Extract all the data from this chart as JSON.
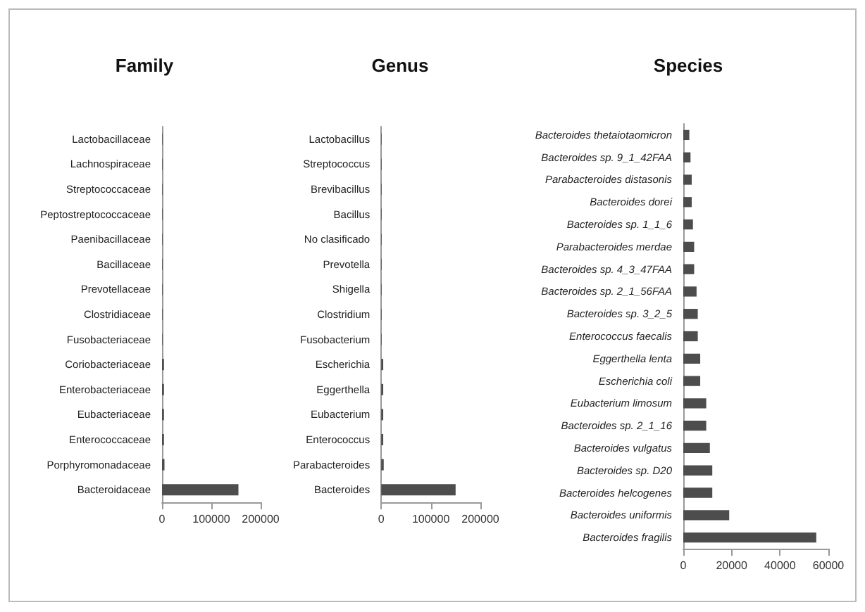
{
  "chart_data": [
    {
      "type": "bar",
      "orientation": "horizontal",
      "title": "Family",
      "categories": [
        "Lactobacillaceae",
        "Lachnospiraceae",
        "Streptococcaceae",
        "Peptostreptococcaceae",
        "Paenibacillaceae",
        "Bacillaceae",
        "Prevotellaceae",
        "Clostridiaceae",
        "Fusobacteriaceae",
        "Coriobacteriaceae",
        "Enterobacteriaceae",
        "Eubacteriaceae",
        "Enterococcaceae",
        "Porphyromonadaceae",
        "Bacteroidaceae"
      ],
      "values": [
        1000,
        1000,
        1000,
        1000,
        1000,
        1000,
        1000,
        1000,
        1000,
        4000,
        4000,
        4000,
        4000,
        5000,
        155000
      ],
      "color": "#4d4d4d",
      "xlim": [
        0,
        200000
      ],
      "xticks": [
        0,
        100000,
        200000
      ],
      "grid": false
    },
    {
      "type": "bar",
      "orientation": "horizontal",
      "title": "Genus",
      "categories": [
        "Lactobacillus",
        "Streptococcus",
        "Brevibacillus",
        "Bacillus",
        "No clasificado",
        "Prevotella",
        "Shigella",
        "Clostridium",
        "Fusobacterium",
        "Escherichia",
        "Eggerthella",
        "Eubacterium",
        "Enterococcus",
        "Parabacteroides",
        "Bacteroides"
      ],
      "values": [
        1000,
        1000,
        1000,
        1000,
        1000,
        1000,
        1000,
        1000,
        1000,
        4000,
        4000,
        4000,
        4000,
        5000,
        150000
      ],
      "color": "#4d4d4d",
      "xlim": [
        0,
        200000
      ],
      "xticks": [
        0,
        100000,
        200000
      ],
      "grid": false
    },
    {
      "type": "bar",
      "orientation": "horizontal",
      "title": "Species",
      "categories": [
        "Bacteroides thetaiotaomicron",
        "Bacteroides sp. 9_1_42FAA",
        "Parabacteroides distasonis",
        "Bacteroides dorei",
        "Bacteroides sp. 1_1_6",
        "Parabacteroides merdae",
        "Bacteroides sp. 4_3_47FAA",
        "Bacteroides sp. 2_1_56FAA",
        "Bacteroides sp. 3_2_5",
        "Enterococcus faecalis",
        "Eggerthella lenta",
        "Escherichia coli",
        "Eubacterium limosum",
        "Bacteroides sp. 2_1_16",
        "Bacteroides vulgatus",
        "Bacteroides sp. D20",
        "Bacteroides helcogenes",
        "Bacteroides uniformis",
        "Bacteroides fragilis"
      ],
      "values": [
        2500,
        3000,
        3500,
        3500,
        4000,
        4500,
        4500,
        5500,
        6000,
        6000,
        7000,
        7000,
        9500,
        9500,
        11000,
        12000,
        12000,
        19000,
        55000
      ],
      "color": "#4d4d4d",
      "xlim": [
        0,
        60000
      ],
      "xticks": [
        0,
        20000,
        40000,
        60000
      ],
      "grid": false
    }
  ]
}
